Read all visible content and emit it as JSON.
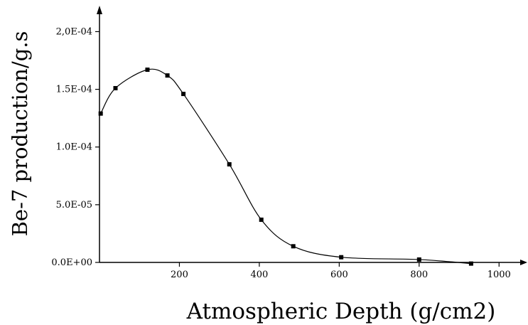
{
  "chart_data": {
    "type": "line",
    "title": "",
    "xlabel": "Atmospheric Depth (g/cm2)",
    "ylabel": "Be-7 production/g.s",
    "xlim": [
      0,
      1060
    ],
    "ylim": [
      0,
      0.00022
    ],
    "grid": false,
    "x_ticks": [
      200,
      400,
      600,
      800,
      1000
    ],
    "x_tick_labels": [
      "200",
      "400",
      "600",
      "800",
      "1000"
    ],
    "y_ticks": [
      0,
      5e-05,
      0.0001,
      0.00015,
      0.0002
    ],
    "y_tick_labels": [
      "0.0E+00",
      "5.0E-05",
      "1.0E-04",
      "1.5E-04",
      "2,0E-04"
    ],
    "series": [
      {
        "color": "#000000",
        "markers": "square",
        "x": [
          3,
          40,
          120,
          170,
          210,
          325,
          405,
          485,
          605,
          800,
          930
        ],
        "y": [
          0.000129,
          0.000151,
          0.000167,
          0.000162,
          0.000146,
          8.5e-05,
          3.7e-05,
          1.4e-05,
          4.5e-06,
          2.5e-06,
          -1e-06
        ]
      }
    ]
  }
}
